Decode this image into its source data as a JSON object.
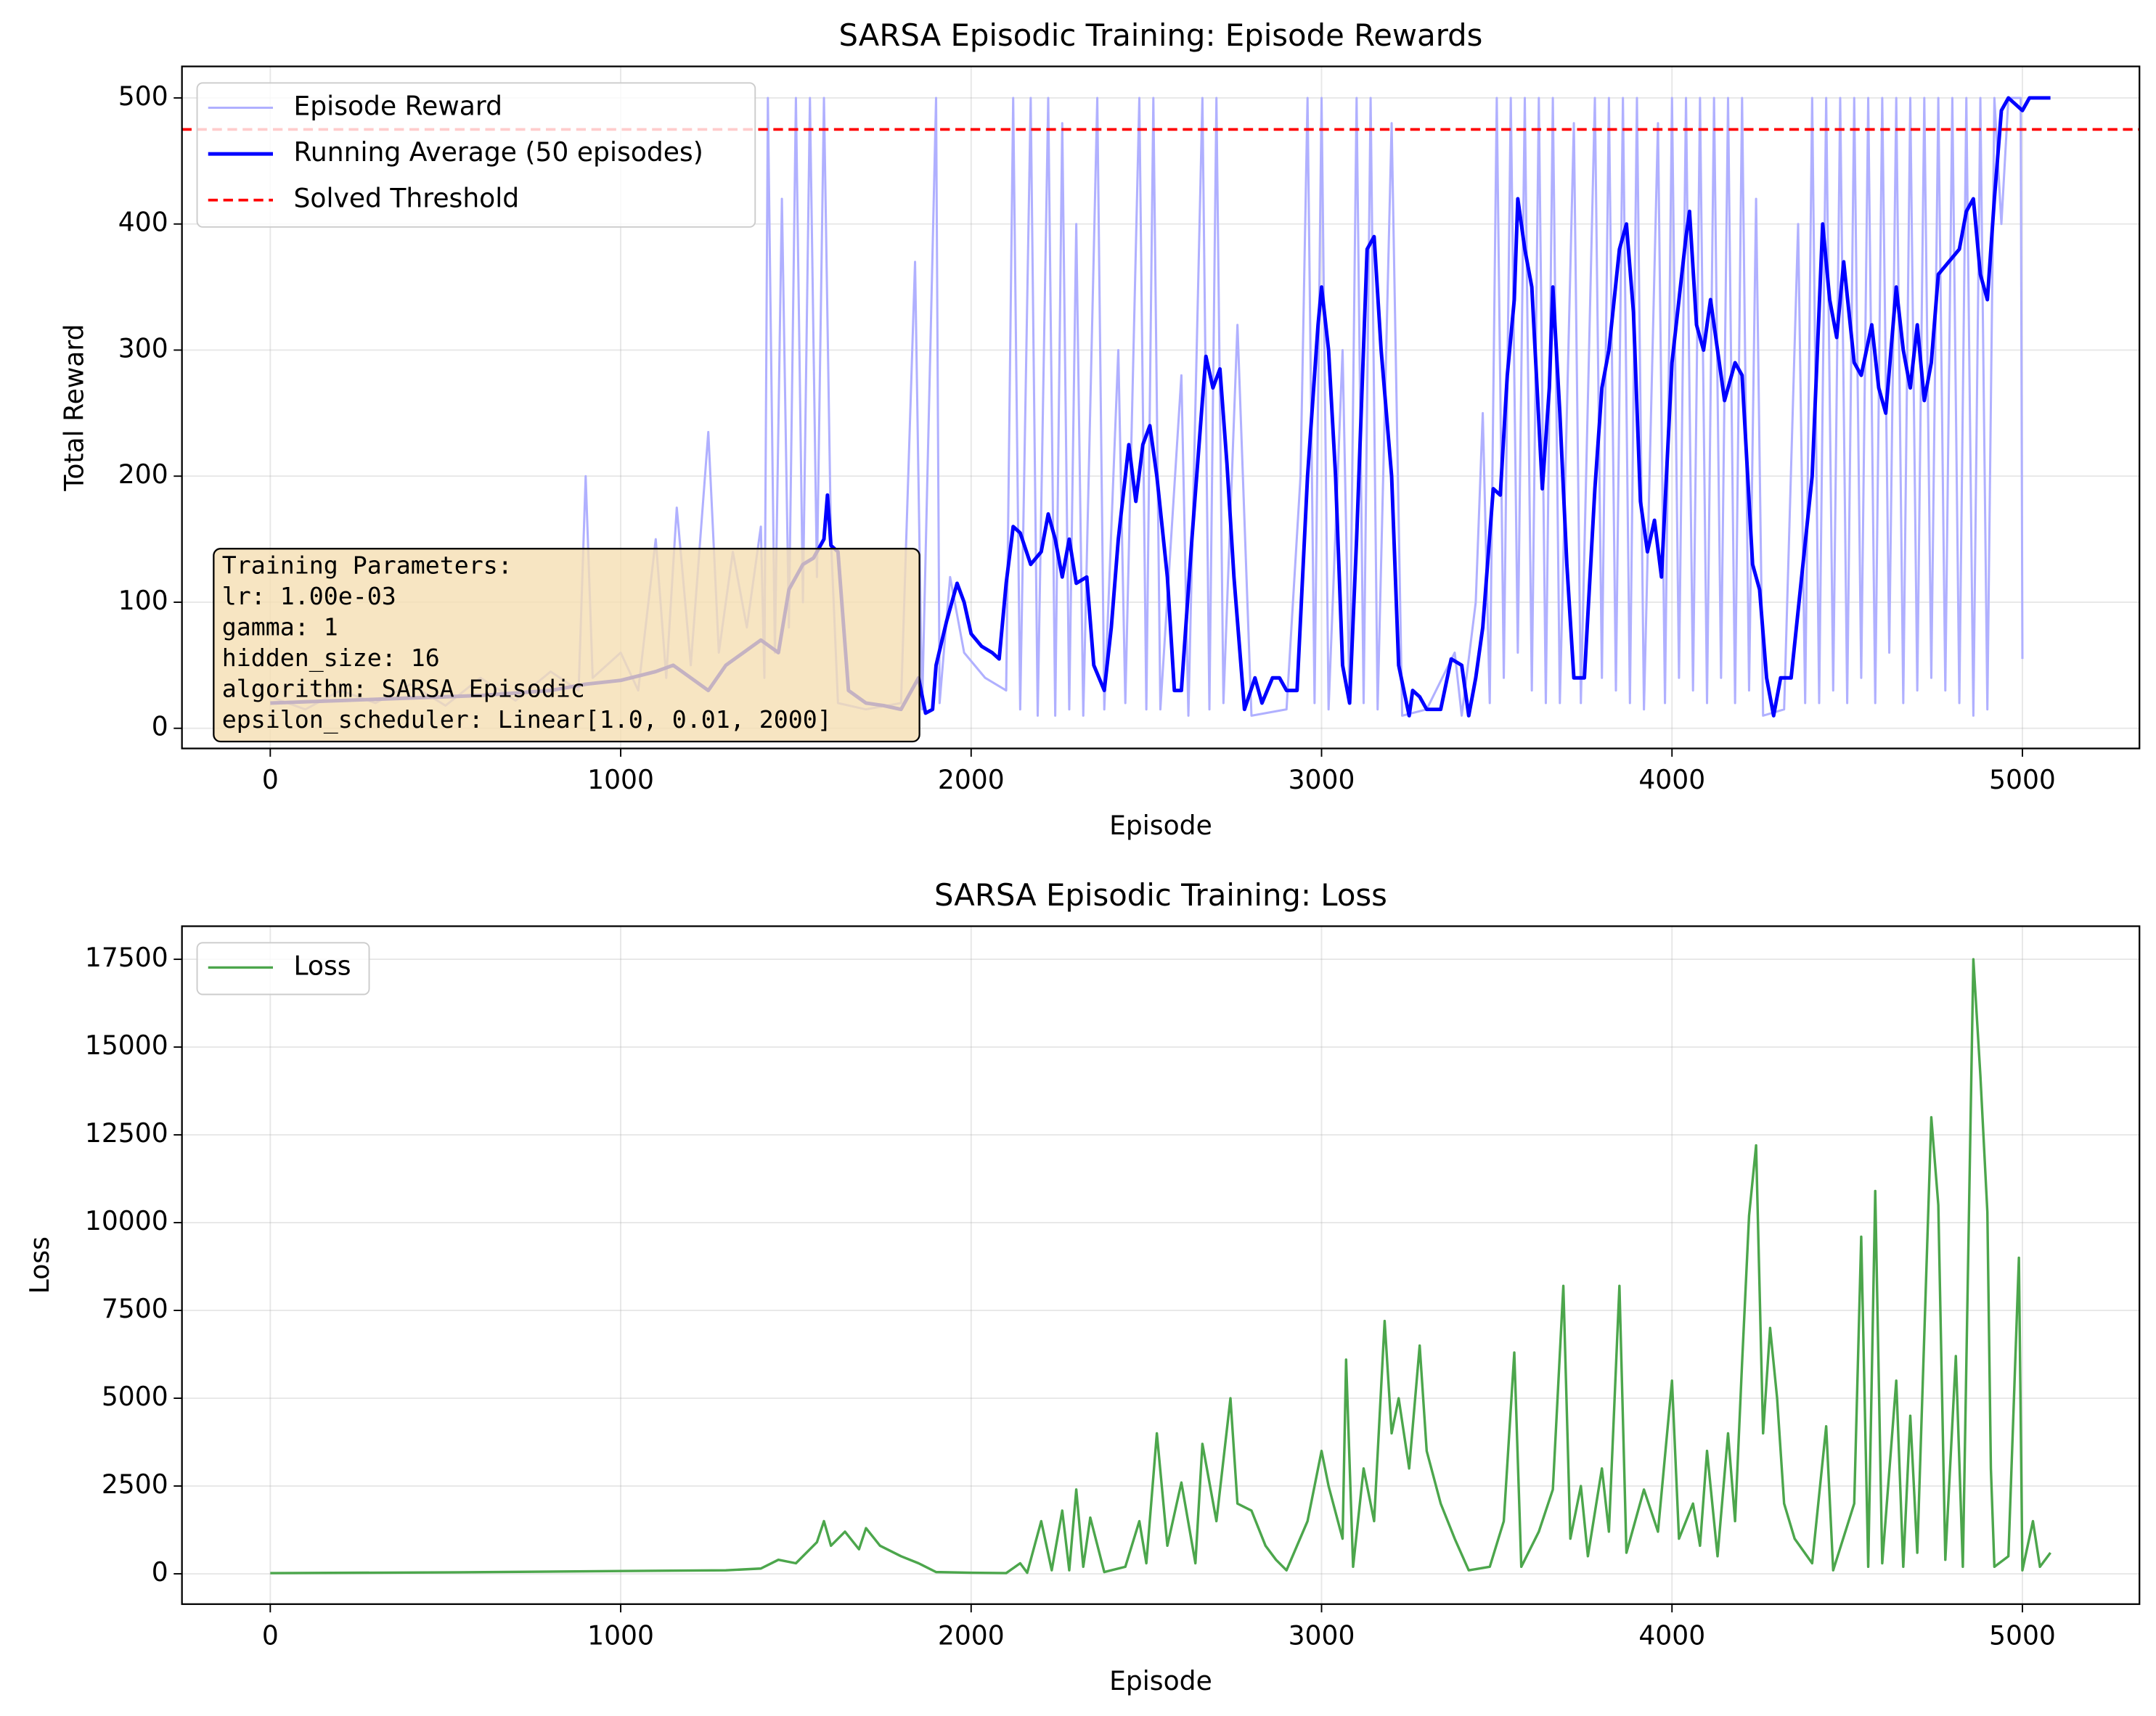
{
  "chart_data": [
    {
      "type": "line",
      "title": "SARSA Episodic Training: Episode Rewards",
      "xlabel": "Episode",
      "ylabel": "Total Reward",
      "xlim": [
        -252,
        5334
      ],
      "ylim": [
        -16,
        525
      ],
      "xticks": [
        0,
        1000,
        2000,
        3000,
        4000,
        5000
      ],
      "yticks": [
        0,
        100,
        200,
        300,
        400,
        500
      ],
      "grid": true,
      "legend": "upper left",
      "series": [
        {
          "name": "Episode Reward",
          "color": "#b0b0ff",
          "width": 1.6,
          "x": [
            0,
            100,
            200,
            300,
            400,
            500,
            600,
            700,
            800,
            880,
            900,
            920,
            1000,
            1050,
            1100,
            1130,
            1160,
            1200,
            1250,
            1280,
            1320,
            1360,
            1400,
            1410,
            1420,
            1440,
            1460,
            1480,
            1500,
            1520,
            1540,
            1560,
            1580,
            1600,
            1620,
            1700,
            1800,
            1840,
            1860,
            1900,
            1910,
            1940,
            1980,
            2040,
            2100,
            2120,
            2140,
            2170,
            2190,
            2220,
            2240,
            2260,
            2280,
            2300,
            2320,
            2360,
            2380,
            2420,
            2440,
            2480,
            2500,
            2520,
            2540,
            2600,
            2620,
            2660,
            2680,
            2700,
            2720,
            2760,
            2800,
            2900,
            2940,
            2960,
            2980,
            3000,
            3020,
            3060,
            3080,
            3100,
            3120,
            3140,
            3160,
            3200,
            3230,
            3300,
            3380,
            3400,
            3440,
            3460,
            3480,
            3500,
            3520,
            3540,
            3560,
            3580,
            3600,
            3620,
            3640,
            3660,
            3680,
            3720,
            3740,
            3780,
            3800,
            3820,
            3840,
            3860,
            3880,
            3900,
            3920,
            3960,
            3980,
            4000,
            4020,
            4040,
            4060,
            4080,
            4100,
            4120,
            4140,
            4160,
            4180,
            4200,
            4220,
            4240,
            4260,
            4320,
            4360,
            4380,
            4400,
            4420,
            4440,
            4460,
            4480,
            4500,
            4520,
            4540,
            4560,
            4580,
            4600,
            4620,
            4640,
            4660,
            4680,
            4700,
            4720,
            4740,
            4760,
            4780,
            4800,
            4820,
            4840,
            4860,
            4880,
            4900,
            4920,
            4940,
            4960,
            4980,
            4995,
            5000
          ],
          "values": [
            25,
            15,
            30,
            20,
            35,
            18,
            40,
            22,
            45,
            30,
            200,
            40,
            60,
            30,
            150,
            40,
            175,
            50,
            235,
            60,
            140,
            80,
            160,
            40,
            500,
            60,
            420,
            80,
            500,
            100,
            500,
            120,
            500,
            150,
            20,
            15,
            20,
            370,
            15,
            500,
            20,
            120,
            60,
            40,
            30,
            500,
            15,
            500,
            10,
            500,
            10,
            480,
            15,
            400,
            10,
            500,
            15,
            300,
            20,
            500,
            15,
            500,
            15,
            280,
            10,
            500,
            15,
            500,
            20,
            320,
            10,
            15,
            200,
            500,
            20,
            500,
            15,
            300,
            20,
            500,
            20,
            500,
            15,
            480,
            10,
            15,
            60,
            10,
            100,
            250,
            20,
            500,
            40,
            500,
            60,
            500,
            30,
            500,
            20,
            500,
            20,
            480,
            20,
            500,
            40,
            500,
            30,
            500,
            20,
            500,
            15,
            480,
            20,
            500,
            40,
            500,
            30,
            500,
            20,
            500,
            40,
            500,
            20,
            500,
            30,
            420,
            10,
            15,
            400,
            20,
            500,
            20,
            500,
            30,
            500,
            20,
            500,
            40,
            500,
            20,
            500,
            60,
            500,
            20,
            500,
            30,
            500,
            40,
            500,
            30,
            500,
            20,
            500,
            10,
            500,
            15,
            500,
            400,
            500,
            500,
            500,
            55
          ]
        },
        {
          "name": "Running Average (50 episodes)",
          "color": "#0000ff",
          "width": 2.6,
          "x": [
            0,
            200,
            400,
            600,
            800,
            900,
            1000,
            1100,
            1150,
            1200,
            1250,
            1300,
            1350,
            1400,
            1450,
            1480,
            1520,
            1550,
            1580,
            1590,
            1600,
            1620,
            1650,
            1700,
            1750,
            1800,
            1850,
            1870,
            1890,
            1900,
            1930,
            1960,
            1980,
            2000,
            2030,
            2060,
            2080,
            2100,
            2120,
            2140,
            2170,
            2200,
            2220,
            2240,
            2260,
            2280,
            2300,
            2330,
            2350,
            2380,
            2400,
            2420,
            2450,
            2470,
            2490,
            2510,
            2530,
            2560,
            2580,
            2600,
            2630,
            2660,
            2670,
            2690,
            2710,
            2730,
            2750,
            2780,
            2810,
            2830,
            2860,
            2880,
            2900,
            2930,
            2960,
            2990,
            3000,
            3020,
            3040,
            3060,
            3080,
            3100,
            3130,
            3150,
            3170,
            3200,
            3220,
            3250,
            3260,
            3280,
            3300,
            3340,
            3370,
            3400,
            3420,
            3440,
            3460,
            3490,
            3510,
            3530,
            3550,
            3560,
            3580,
            3600,
            3630,
            3650,
            3660,
            3680,
            3700,
            3720,
            3750,
            3780,
            3800,
            3820,
            3850,
            3870,
            3890,
            3910,
            3930,
            3950,
            3970,
            4000,
            4020,
            4040,
            4050,
            4070,
            4090,
            4110,
            4130,
            4150,
            4180,
            4200,
            4230,
            4250,
            4270,
            4290,
            4310,
            4340,
            4370,
            4400,
            4430,
            4450,
            4470,
            4490,
            4520,
            4540,
            4570,
            4590,
            4610,
            4640,
            4660,
            4680,
            4700,
            4720,
            4740,
            4760,
            4790,
            4820,
            4840,
            4860,
            4880,
            4900,
            4920,
            4940,
            4960,
            5000,
            5020,
            5080
          ],
          "values": [
            20,
            22,
            24,
            26,
            30,
            35,
            38,
            45,
            50,
            40,
            30,
            50,
            60,
            70,
            60,
            110,
            130,
            135,
            150,
            185,
            145,
            140,
            30,
            20,
            18,
            15,
            40,
            12,
            15,
            50,
            85,
            115,
            100,
            75,
            65,
            60,
            55,
            115,
            160,
            155,
            130,
            140,
            170,
            150,
            120,
            150,
            115,
            120,
            50,
            30,
            80,
            150,
            225,
            180,
            225,
            240,
            200,
            120,
            30,
            30,
            150,
            260,
            295,
            270,
            285,
            210,
            120,
            15,
            40,
            20,
            40,
            40,
            30,
            30,
            200,
            320,
            350,
            300,
            200,
            50,
            20,
            150,
            380,
            390,
            300,
            200,
            50,
            10,
            30,
            25,
            15,
            15,
            55,
            50,
            10,
            40,
            80,
            190,
            185,
            280,
            340,
            420,
            380,
            350,
            190,
            270,
            350,
            250,
            130,
            40,
            40,
            190,
            270,
            300,
            380,
            400,
            330,
            180,
            140,
            165,
            120,
            290,
            340,
            390,
            410,
            320,
            300,
            340,
            300,
            260,
            290,
            280,
            130,
            110,
            40,
            10,
            40,
            40,
            120,
            200,
            400,
            340,
            310,
            370,
            290,
            280,
            320,
            270,
            250,
            350,
            300,
            270,
            320,
            260,
            290,
            360,
            370,
            380,
            410,
            420,
            360,
            340,
            420,
            490,
            500,
            490,
            500,
            500
          ]
        }
      ],
      "threshold": {
        "name": "Solved Threshold",
        "color": "#ff0000",
        "value": 475
      },
      "text_box": [
        "Training Parameters:",
        "lr: 1.00e-03",
        "gamma: 1",
        "hidden_size: 16",
        "algorithm: SARSA Episodic",
        "epsilon_scheduler: Linear[1.0, 0.01, 2000]"
      ]
    },
    {
      "type": "line",
      "title": "SARSA Episodic Training: Loss",
      "xlabel": "Episode",
      "ylabel": "Loss",
      "xlim": [
        -252,
        5334
      ],
      "ylim": [
        -863,
        18442
      ],
      "xticks": [
        0,
        1000,
        2000,
        3000,
        4000,
        5000
      ],
      "yticks": [
        0,
        2500,
        5000,
        7500,
        10000,
        12500,
        15000,
        17500
      ],
      "grid": true,
      "legend": "upper left",
      "series": [
        {
          "name": "Loss",
          "color": "#4ca64c",
          "width": 1.8,
          "x": [
            0,
            500,
            1000,
            1300,
            1400,
            1450,
            1500,
            1560,
            1580,
            1600,
            1640,
            1680,
            1700,
            1740,
            1800,
            1850,
            1900,
            2000,
            2100,
            2140,
            2160,
            2200,
            2230,
            2260,
            2280,
            2300,
            2320,
            2340,
            2380,
            2440,
            2480,
            2500,
            2530,
            2560,
            2600,
            2640,
            2660,
            2700,
            2740,
            2760,
            2800,
            2840,
            2870,
            2900,
            2960,
            3000,
            3020,
            3060,
            3070,
            3090,
            3120,
            3150,
            3180,
            3200,
            3220,
            3250,
            3280,
            3300,
            3340,
            3380,
            3420,
            3480,
            3520,
            3550,
            3570,
            3620,
            3660,
            3690,
            3710,
            3740,
            3760,
            3800,
            3820,
            3850,
            3870,
            3920,
            3960,
            4000,
            4020,
            4060,
            4080,
            4100,
            4130,
            4160,
            4180,
            4200,
            4220,
            4240,
            4260,
            4280,
            4300,
            4320,
            4350,
            4400,
            4440,
            4460,
            4520,
            4540,
            4560,
            4580,
            4600,
            4640,
            4660,
            4680,
            4700,
            4740,
            4760,
            4780,
            4810,
            4830,
            4860,
            4880,
            4900,
            4910,
            4920,
            4960,
            4990,
            5000,
            5030,
            5050,
            5080
          ],
          "values": [
            20,
            40,
            80,
            100,
            150,
            400,
            300,
            900,
            1500,
            800,
            1200,
            700,
            1300,
            800,
            500,
            300,
            50,
            30,
            20,
            300,
            30,
            1500,
            100,
            1800,
            100,
            2400,
            200,
            1600,
            50,
            200,
            1500,
            300,
            4000,
            800,
            2600,
            300,
            3700,
            1500,
            5000,
            2000,
            1800,
            800,
            400,
            100,
            1500,
            3500,
            2500,
            1000,
            6100,
            200,
            3000,
            1500,
            7200,
            4000,
            5000,
            3000,
            6500,
            3500,
            2000,
            1000,
            100,
            200,
            1500,
            6300,
            200,
            1200,
            2400,
            8200,
            1000,
            2500,
            500,
            3000,
            1200,
            8200,
            600,
            2400,
            1200,
            5500,
            1000,
            2000,
            800,
            3500,
            500,
            4000,
            1500,
            6000,
            10200,
            12200,
            4000,
            7000,
            5000,
            2000,
            1000,
            300,
            4200,
            100,
            2000,
            9600,
            200,
            10900,
            300,
            5500,
            200,
            4500,
            600,
            13000,
            10500,
            400,
            6200,
            200,
            17500,
            14200,
            10300,
            3000,
            200,
            500,
            9000,
            100,
            1500,
            200,
            600
          ]
        }
      ]
    }
  ]
}
